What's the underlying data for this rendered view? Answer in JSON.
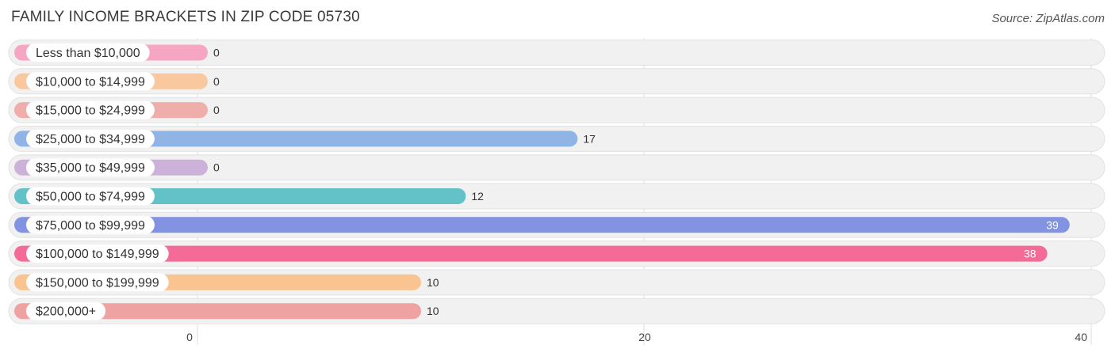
{
  "header": {
    "title": "FAMILY INCOME BRACKETS IN ZIP CODE 05730",
    "source": "Source: ZipAtlas.com"
  },
  "chart_data": {
    "type": "bar",
    "orientation": "horizontal",
    "title": "FAMILY INCOME BRACKETS IN ZIP CODE 05730",
    "categories": [
      "Less than $10,000",
      "$10,000 to $14,999",
      "$15,000 to $24,999",
      "$25,000 to $34,999",
      "$35,000 to $49,999",
      "$50,000 to $74,999",
      "$75,000 to $99,999",
      "$100,000 to $149,999",
      "$150,000 to $199,999",
      "$200,000+"
    ],
    "values": [
      0,
      0,
      0,
      17,
      0,
      12,
      39,
      38,
      10,
      10
    ],
    "colors": [
      "#f6a6c3",
      "#f9c89e",
      "#f0aeab",
      "#8fb4e5",
      "#ccb2d8",
      "#63c1c8",
      "#8193e1",
      "#f46b97",
      "#f9c48f",
      "#eea3a2"
    ],
    "xlim": [
      0,
      40
    ],
    "xticks": [
      0,
      20,
      40
    ],
    "grid": true,
    "legend": "none"
  }
}
